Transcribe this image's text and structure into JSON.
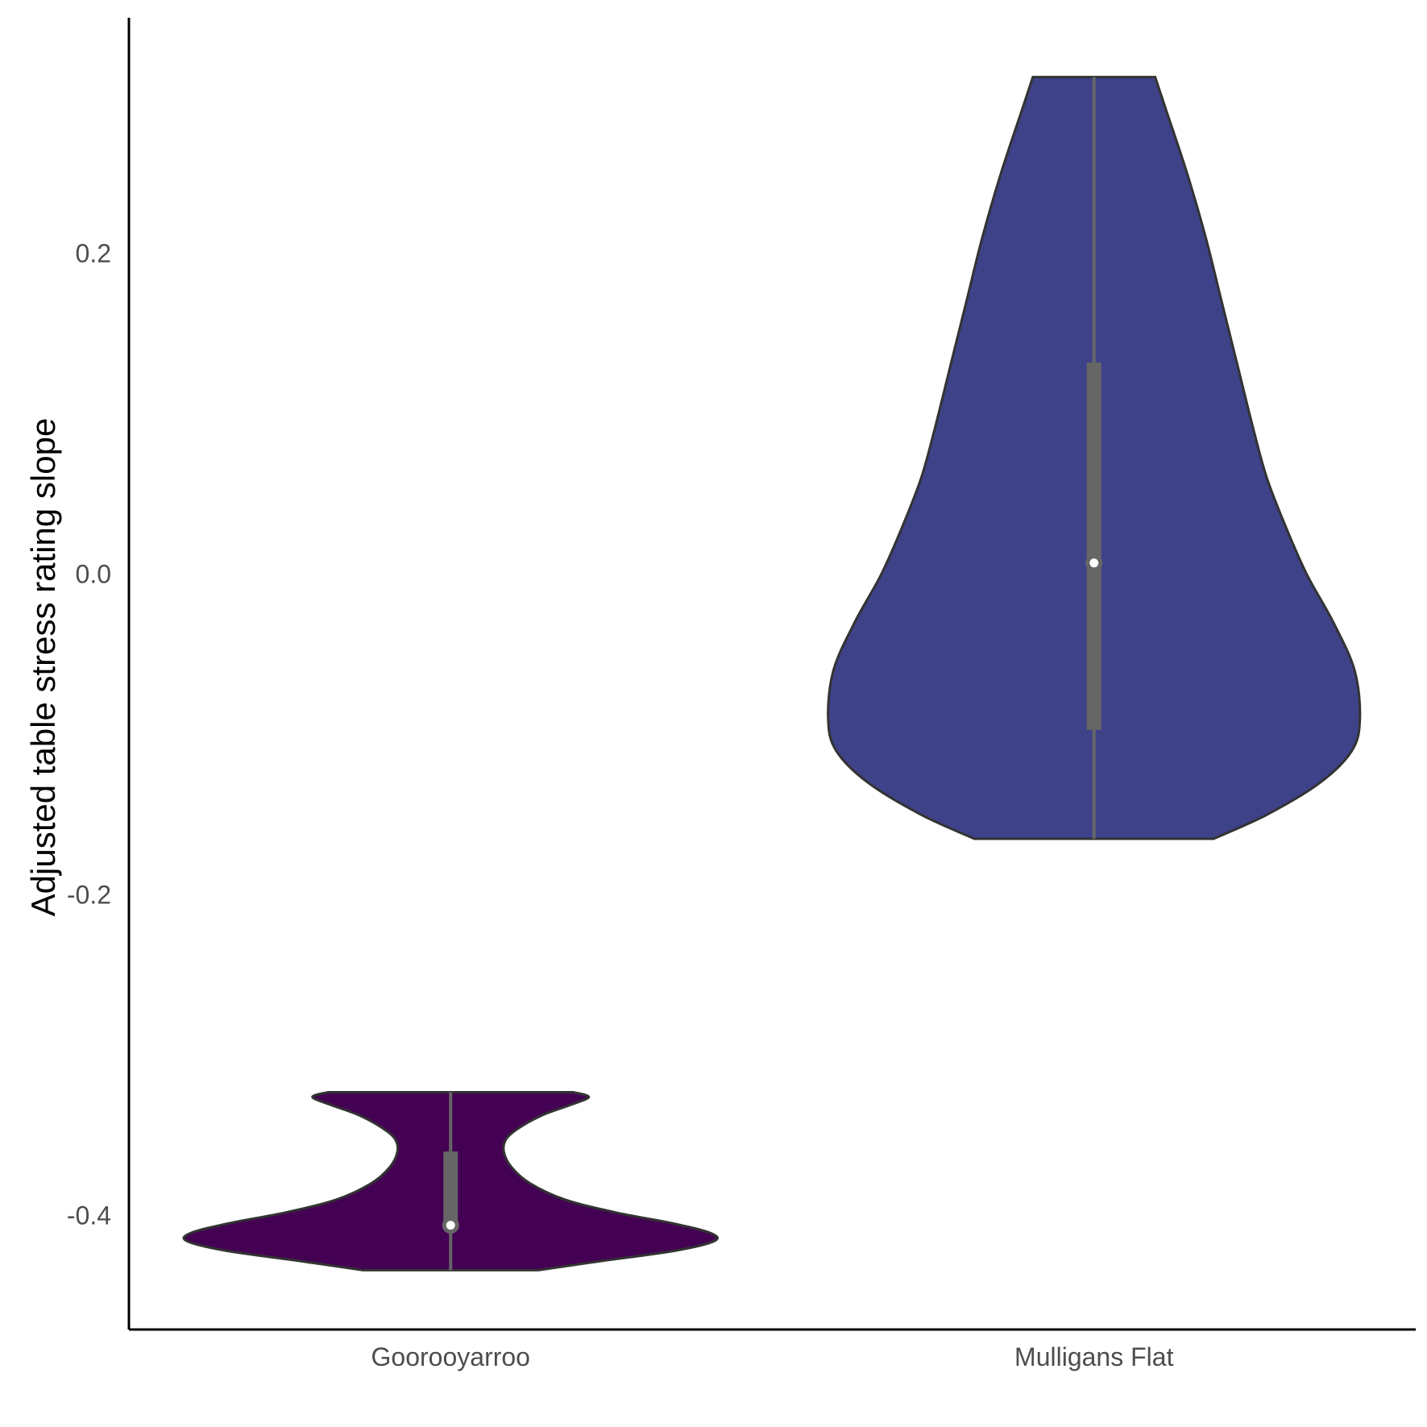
{
  "chart_data": {
    "type": "violin",
    "title": "",
    "xlabel": "",
    "ylabel": "Adjusted table stress rating slope",
    "ylim": [
      -0.471,
      0.347
    ],
    "yticks": [
      0.2,
      0.0,
      -0.2,
      -0.4
    ],
    "ytick_labels": [
      "0.2",
      "0.0",
      "-0.2",
      "-0.4"
    ],
    "categories": [
      "Goorooyarroo",
      "Mulligans Flat"
    ],
    "grid": false,
    "legend": "none",
    "groups": [
      {
        "name": "Goorooyarroo",
        "color": "#440154",
        "min": -0.434,
        "max": -0.323,
        "q1": -0.408,
        "median": -0.406,
        "q3": -0.36,
        "density_profile": [
          [
            -0.434,
            0.33
          ],
          [
            -0.428,
            0.58
          ],
          [
            -0.422,
            0.84
          ],
          [
            -0.416,
            0.99
          ],
          [
            -0.411,
            0.98
          ],
          [
            -0.405,
            0.84
          ],
          [
            -0.398,
            0.62
          ],
          [
            -0.39,
            0.43
          ],
          [
            -0.38,
            0.3
          ],
          [
            -0.37,
            0.23
          ],
          [
            -0.36,
            0.2
          ],
          [
            -0.352,
            0.21
          ],
          [
            -0.345,
            0.26
          ],
          [
            -0.337,
            0.35
          ],
          [
            -0.331,
            0.45
          ],
          [
            -0.326,
            0.52
          ],
          [
            -0.323,
            0.46
          ]
        ]
      },
      {
        "name": "Mulligans Flat",
        "color": "#3e4289",
        "min": -0.165,
        "max": 0.31,
        "q1": -0.097,
        "median": 0.007,
        "q3": 0.132,
        "density_profile": [
          [
            -0.165,
            0.45
          ],
          [
            -0.15,
            0.65
          ],
          [
            -0.13,
            0.85
          ],
          [
            -0.11,
            0.97
          ],
          [
            -0.09,
            1.0
          ],
          [
            -0.06,
            0.98
          ],
          [
            -0.03,
            0.9
          ],
          [
            0.0,
            0.8
          ],
          [
            0.03,
            0.72
          ],
          [
            0.06,
            0.65
          ],
          [
            0.09,
            0.6
          ],
          [
            0.13,
            0.54
          ],
          [
            0.17,
            0.48
          ],
          [
            0.21,
            0.42
          ],
          [
            0.25,
            0.35
          ],
          [
            0.29,
            0.27
          ],
          [
            0.31,
            0.23
          ]
        ]
      }
    ]
  }
}
